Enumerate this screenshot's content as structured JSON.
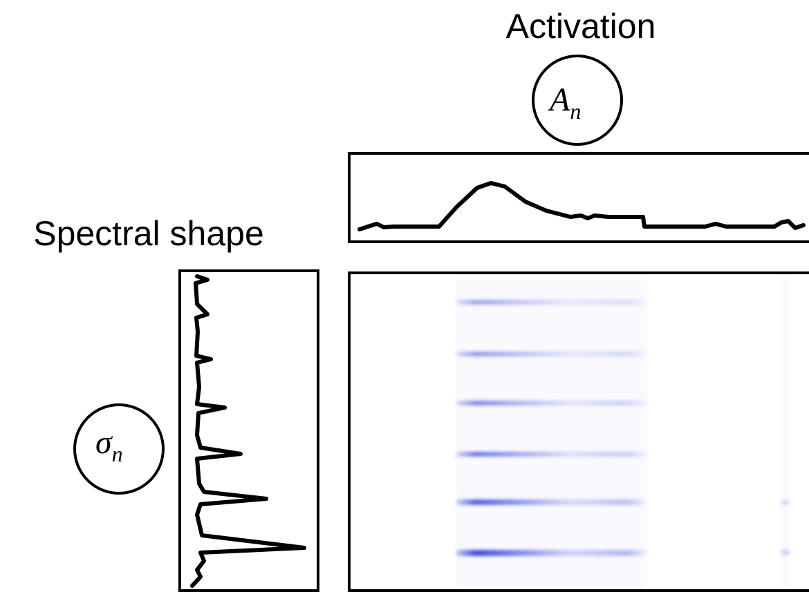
{
  "labels": {
    "activation": "Activation",
    "spectral_shape": "Spectral shape"
  },
  "nodes": [
    {
      "symbol": "A",
      "subscript": "n"
    },
    {
      "symbol": "σ",
      "subscript": "n"
    }
  ]
}
